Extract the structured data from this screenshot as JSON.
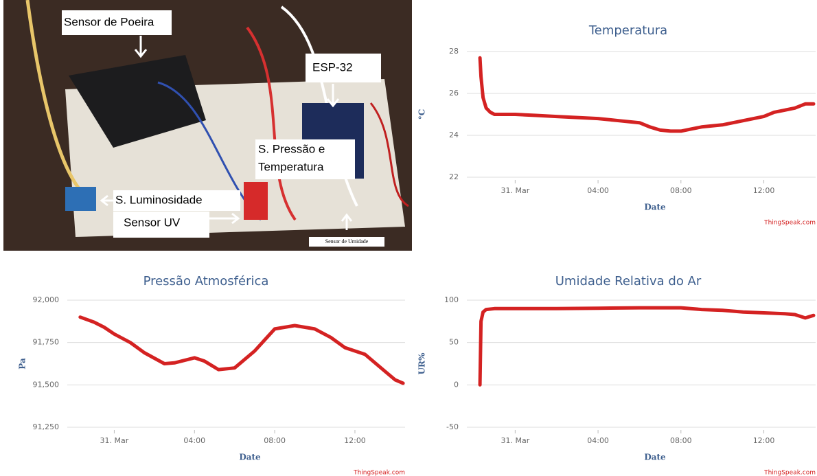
{
  "photo": {
    "labels": [
      "Sensor de Poeira",
      "ESP-32",
      "S. Pressão e",
      "Temperatura",
      "S. Luminosidade",
      "Sensor UV",
      "Sensor de Umidade"
    ]
  },
  "chart_data": [
    {
      "type": "line",
      "title": "Temperatura",
      "xlabel": "Date",
      "ylabel": "°C",
      "credit": "ThingSpeak.com",
      "color": "#d42222",
      "grid": true,
      "x": [
        -1.7,
        -1.65,
        -1.55,
        -1.4,
        -1.2,
        -1,
        0,
        1,
        2,
        3,
        4,
        5,
        6,
        6.5,
        7,
        7.5,
        8,
        8.5,
        9,
        10,
        11,
        12,
        12.5,
        13,
        13.5,
        14,
        14.4
      ],
      "values": [
        27.7,
        26.8,
        25.8,
        25.3,
        25.1,
        25.0,
        25.0,
        24.95,
        24.9,
        24.85,
        24.8,
        24.7,
        24.6,
        24.4,
        24.25,
        24.2,
        24.2,
        24.3,
        24.4,
        24.5,
        24.7,
        24.9,
        25.1,
        25.2,
        25.3,
        25.5,
        25.5
      ],
      "xlim": [
        -2,
        14.5
      ],
      "xticks": [
        {
          "value": 0,
          "label": "31. Mar"
        },
        {
          "value": 4,
          "label": "04:00"
        },
        {
          "value": 8,
          "label": "08:00"
        },
        {
          "value": 12,
          "label": "12:00"
        }
      ],
      "ylim": [
        22,
        28
      ],
      "yticks": [
        22,
        24,
        26,
        28
      ]
    },
    {
      "type": "line",
      "title": "Pressão Atmosférica",
      "xlabel": "Date",
      "ylabel": "Pa",
      "credit": "ThingSpeak.com",
      "color": "#d42222",
      "grid": true,
      "x": [
        -1.7,
        -1,
        -0.5,
        0,
        0.8,
        1.5,
        2.5,
        3,
        4,
        4.5,
        5.2,
        6,
        7,
        8,
        9,
        10,
        10.8,
        11.5,
        12.5,
        13.5,
        14,
        14.4
      ],
      "values": [
        91900,
        91870,
        91840,
        91800,
        91750,
        91690,
        91625,
        91630,
        91660,
        91640,
        91590,
        91600,
        91700,
        91830,
        91850,
        91830,
        91780,
        91720,
        91680,
        91580,
        91530,
        91510
      ],
      "xlim": [
        -2,
        14.5
      ],
      "xticks": [
        {
          "value": 0,
          "label": "31. Mar"
        },
        {
          "value": 4,
          "label": "04:00"
        },
        {
          "value": 8,
          "label": "08:00"
        },
        {
          "value": 12,
          "label": "12:00"
        }
      ],
      "ylim": [
        91250,
        92000
      ],
      "yticks": [
        {
          "value": 91250,
          "label": "91,250"
        },
        {
          "value": 91500,
          "label": "91,500"
        },
        {
          "value": 91750,
          "label": "91,750"
        },
        {
          "value": 92000,
          "label": "92,000"
        }
      ]
    },
    {
      "type": "line",
      "title": "Umidade Relativa do Ar",
      "xlabel": "Date",
      "ylabel": "UR%",
      "credit": "ThingSpeak.com",
      "color": "#d42222",
      "grid": true,
      "x": [
        -1.7,
        -1.65,
        -1.55,
        -1.4,
        -1,
        0,
        2,
        4,
        6,
        8,
        9,
        10,
        11,
        12,
        13,
        13.5,
        14,
        14.4
      ],
      "values": [
        0,
        75,
        86,
        89,
        90,
        90,
        90,
        90.5,
        91,
        91,
        89,
        88,
        86,
        85,
        84,
        83,
        79,
        82
      ],
      "xlim": [
        -2,
        14.5
      ],
      "xticks": [
        {
          "value": 0,
          "label": "31. Mar"
        },
        {
          "value": 4,
          "label": "04:00"
        },
        {
          "value": 8,
          "label": "08:00"
        },
        {
          "value": 12,
          "label": "12:00"
        }
      ],
      "ylim": [
        -50,
        100
      ],
      "yticks": [
        -50,
        0,
        50,
        100
      ]
    }
  ]
}
